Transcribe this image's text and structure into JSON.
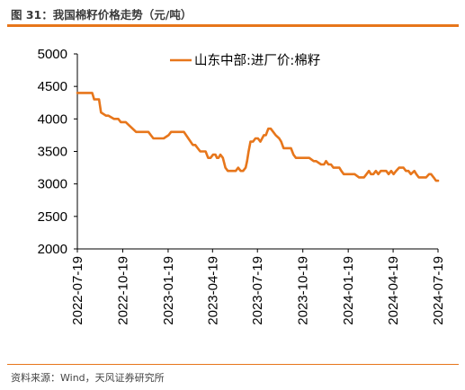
{
  "figure": {
    "title": "图 31：我国棉籽价格走势（元/吨）",
    "source": "资料来源：Wind，天风证券研究所"
  },
  "colors": {
    "accent": "#e7761b",
    "series": "#e7761b"
  },
  "chart_data": {
    "type": "line",
    "title": "",
    "xlabel": "",
    "ylabel": "",
    "ylim": [
      2000,
      5000
    ],
    "yticks": [
      2000,
      2500,
      3000,
      3500,
      4000,
      4500,
      5000
    ],
    "xlim": [
      "2022-07-19",
      "2024-07-19"
    ],
    "xticks": [
      "2022-07-19",
      "2022-10-19",
      "2023-01-19",
      "2023-04-19",
      "2023-07-19",
      "2023-10-19",
      "2024-01-19",
      "2024-04-19",
      "2024-07-19"
    ],
    "grid": false,
    "legend_position": "top-center",
    "series": [
      {
        "name": "山东中部:进厂价:棉籽",
        "color": "#e7761b",
        "x": [
          "2022-07-19",
          "2022-07-30",
          "2022-08-10",
          "2022-08-18",
          "2022-08-22",
          "2022-08-25",
          "2022-09-01",
          "2022-09-05",
          "2022-09-15",
          "2022-09-20",
          "2022-10-01",
          "2022-10-10",
          "2022-10-15",
          "2022-10-20",
          "2022-10-25",
          "2022-11-01",
          "2022-11-15",
          "2022-11-25",
          "2022-12-01",
          "2022-12-10",
          "2022-12-15",
          "2022-12-20",
          "2023-01-01",
          "2023-01-10",
          "2023-01-20",
          "2023-01-25",
          "2023-01-28",
          "2023-02-01",
          "2023-02-05",
          "2023-02-10",
          "2023-02-15",
          "2023-02-20",
          "2023-03-01",
          "2023-03-10",
          "2023-03-15",
          "2023-03-20",
          "2023-03-25",
          "2023-04-05",
          "2023-04-10",
          "2023-04-15",
          "2023-04-20",
          "2023-04-25",
          "2023-04-28",
          "2023-05-01",
          "2023-05-05",
          "2023-05-10",
          "2023-05-15",
          "2023-05-20",
          "2023-05-25",
          "2023-05-28",
          "2023-06-01",
          "2023-06-05",
          "2023-06-10",
          "2023-06-15",
          "2023-06-20",
          "2023-06-25",
          "2023-06-28",
          "2023-07-01",
          "2023-07-05",
          "2023-07-10",
          "2023-07-15",
          "2023-07-20",
          "2023-07-25",
          "2023-08-01",
          "2023-08-05",
          "2023-08-10",
          "2023-08-15",
          "2023-08-20",
          "2023-08-25",
          "2023-09-01",
          "2023-09-05",
          "2023-09-10",
          "2023-09-15",
          "2023-09-18",
          "2023-09-21",
          "2023-09-25",
          "2023-09-30",
          "2023-10-05",
          "2023-10-10",
          "2023-10-15",
          "2023-10-20",
          "2023-10-25",
          "2023-11-01",
          "2023-11-10",
          "2023-11-15",
          "2023-11-25",
          "2023-12-01",
          "2023-12-05",
          "2023-12-10",
          "2023-12-15",
          "2023-12-20",
          "2023-12-25",
          "2024-01-01",
          "2024-01-05",
          "2024-01-10",
          "2024-01-15",
          "2024-01-20",
          "2024-02-01",
          "2024-02-10",
          "2024-02-15",
          "2024-02-20",
          "2024-02-25",
          "2024-03-01",
          "2024-03-05",
          "2024-03-10",
          "2024-03-15",
          "2024-03-20",
          "2024-03-25",
          "2024-04-01",
          "2024-04-05",
          "2024-04-10",
          "2024-04-15",
          "2024-04-20",
          "2024-04-25",
          "2024-05-01",
          "2024-05-05",
          "2024-05-10",
          "2024-05-15",
          "2024-05-20",
          "2024-05-25",
          "2024-06-01",
          "2024-06-05",
          "2024-06-10",
          "2024-06-15",
          "2024-06-20",
          "2024-06-25",
          "2024-07-01",
          "2024-07-05",
          "2024-07-10",
          "2024-07-15",
          "2024-07-19"
        ],
        "values": [
          4400,
          4400,
          4400,
          4400,
          4300,
          4300,
          4300,
          4100,
          4050,
          4050,
          4000,
          4000,
          3950,
          3950,
          3950,
          3900,
          3800,
          3800,
          3800,
          3800,
          3750,
          3700,
          3700,
          3700,
          3750,
          3800,
          3800,
          3800,
          3800,
          3800,
          3800,
          3800,
          3700,
          3600,
          3600,
          3550,
          3500,
          3500,
          3400,
          3400,
          3450,
          3450,
          3400,
          3400,
          3450,
          3400,
          3250,
          3200,
          3200,
          3200,
          3200,
          3200,
          3250,
          3200,
          3200,
          3250,
          3350,
          3500,
          3650,
          3650,
          3700,
          3700,
          3650,
          3750,
          3750,
          3850,
          3850,
          3800,
          3750,
          3700,
          3650,
          3550,
          3550,
          3550,
          3550,
          3550,
          3450,
          3400,
          3400,
          3400,
          3400,
          3400,
          3400,
          3350,
          3350,
          3300,
          3300,
          3350,
          3300,
          3300,
          3250,
          3250,
          3250,
          3200,
          3150,
          3150,
          3150,
          3150,
          3100,
          3100,
          3100,
          3150,
          3200,
          3150,
          3150,
          3200,
          3150,
          3200,
          3200,
          3200,
          3150,
          3200,
          3150,
          3200,
          3250,
          3250,
          3250,
          3200,
          3200,
          3150,
          3200,
          3150,
          3100,
          3100,
          3100,
          3100,
          3150,
          3150,
          3100,
          3050,
          3050
        ]
      }
    ]
  }
}
